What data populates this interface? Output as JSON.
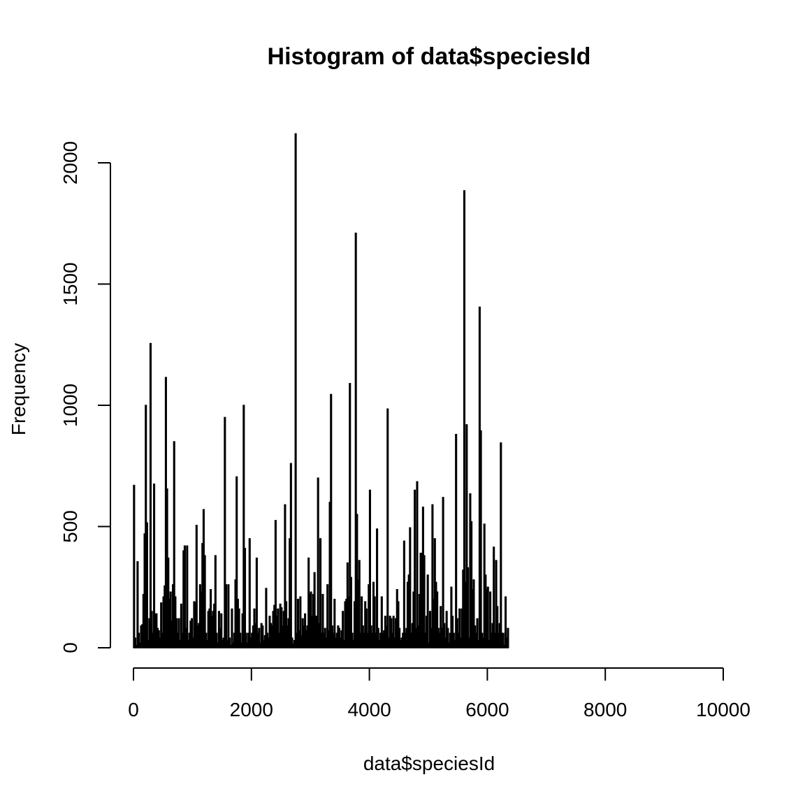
{
  "chart_data": {
    "type": "bar",
    "title": "Histogram of data$speciesId",
    "xlabel": "data$speciesId",
    "ylabel": "Frequency",
    "xlim": [
      0,
      10000
    ],
    "ylim": [
      0,
      2000
    ],
    "x_ticks": [
      0,
      2000,
      4000,
      6000,
      8000,
      10000
    ],
    "y_ticks": [
      0,
      500,
      1000,
      1500,
      2000
    ],
    "x_tick_labels": [
      "0",
      "2000",
      "4000",
      "6000",
      "8000",
      "10000"
    ],
    "y_tick_labels": [
      "0",
      "500",
      "1000",
      "1500",
      "2000"
    ],
    "bin_width": 20,
    "grid": false,
    "legend": "none",
    "series": [
      {
        "values": [
          670,
          40,
          10,
          355,
          60,
          20,
          90,
          95,
          220,
          470,
          1000,
          515,
          30,
          120,
          1255,
          150,
          60,
          675,
          140,
          140,
          80,
          70,
          40,
          185,
          60,
          210,
          255,
          1115,
          655,
          370,
          200,
          230,
          110,
          260,
          850,
          210,
          120,
          60,
          120,
          30,
          180,
          60,
          400,
          420,
          80,
          420,
          30,
          60,
          110,
          120,
          40,
          190,
          185,
          505,
          90,
          100,
          260,
          230,
          430,
          570,
          380,
          60,
          30,
          150,
          160,
          240,
          130,
          150,
          180,
          380,
          60,
          20,
          150,
          80,
          140,
          30,
          40,
          950,
          260,
          30,
          260,
          40,
          10,
          160,
          20,
          60,
          280,
          705,
          200,
          160,
          60,
          20,
          140,
          1000,
          410,
          60,
          20,
          60,
          450,
          40,
          60,
          90,
          160,
          100,
          370,
          60,
          80,
          20,
          100,
          90,
          30,
          50,
          245,
          60,
          40,
          130,
          100,
          90,
          150,
          175,
          525,
          130,
          160,
          60,
          180,
          165,
          90,
          150,
          590,
          190,
          90,
          120,
          450,
          760,
          40,
          15,
          30,
          2120,
          60,
          200,
          70,
          210,
          50,
          120,
          90,
          140,
          70,
          90,
          370,
          220,
          230,
          130,
          220,
          310,
          130,
          130,
          700,
          100,
          450,
          60,
          220,
          60,
          80,
          40,
          260,
          70,
          600,
          1045,
          90,
          60,
          200,
          40,
          60,
          90,
          80,
          40,
          70,
          150,
          30,
          190,
          200,
          350,
          210,
          1090,
          290,
          60,
          30,
          190,
          1710,
          550,
          280,
          360,
          60,
          210,
          90,
          60,
          190,
          160,
          60,
          260,
          650,
          90,
          60,
          270,
          210,
          60,
          490,
          80,
          30,
          60,
          210,
          60,
          70,
          130,
          90,
          985,
          40,
          130,
          120,
          60,
          130,
          40,
          120,
          240,
          190,
          80,
          30,
          40,
          60,
          440,
          60,
          80,
          270,
          300,
          495,
          60,
          100,
          230,
          650,
          80,
          685,
          90,
          220,
          390,
          390,
          580,
          380,
          60,
          130,
          300,
          20,
          150,
          80,
          590,
          200,
          450,
          270,
          230,
          80,
          60,
          170,
          80,
          620,
          100,
          40,
          150,
          80,
          20,
          60,
          250,
          130,
          60,
          30,
          880,
          120,
          60,
          160,
          40,
          160,
          320,
          1885,
          270,
          920,
          330,
          40,
          635,
          520,
          240,
          280,
          90,
          60,
          120,
          30,
          1405,
          895,
          60,
          40,
          510,
          300,
          240,
          250,
          30,
          230,
          60,
          100,
          415,
          60,
          360,
          170,
          60,
          100,
          845,
          60,
          60,
          10,
          210,
          40,
          80
        ]
      }
    ]
  }
}
